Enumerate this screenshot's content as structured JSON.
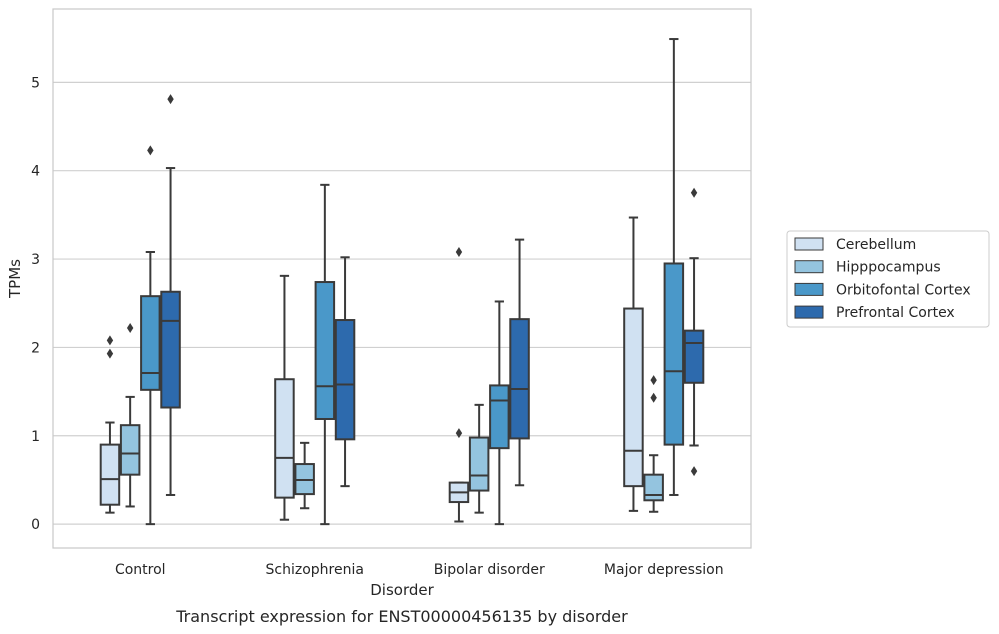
{
  "chart_data": {
    "type": "box",
    "title": "",
    "caption": "Transcript expression for ENST00000456135 by disorder",
    "xlabel": "Disorder",
    "ylabel": "TPMs",
    "ylim": [
      -0.27,
      5.83
    ],
    "yticks": [
      0,
      1,
      2,
      3,
      4,
      5
    ],
    "grid": "horizontal",
    "legend_position": "right",
    "categories": [
      "Control",
      "Schizophrenia",
      "Bipolar disorder",
      "Major depression"
    ],
    "series": [
      {
        "name": "Cerebellum",
        "color": "#d0e1f2",
        "boxes": [
          {
            "q1": 0.22,
            "median": 0.51,
            "q3": 0.9,
            "whisker_low": 0.13,
            "whisker_high": 1.15,
            "outliers": [
              1.93,
              2.08
            ]
          },
          {
            "q1": 0.3,
            "median": 0.75,
            "q3": 1.64,
            "whisker_low": 0.05,
            "whisker_high": 2.81,
            "outliers": []
          },
          {
            "q1": 0.25,
            "median": 0.36,
            "q3": 0.47,
            "whisker_low": 0.03,
            "whisker_high": 0.47,
            "outliers": [
              1.03,
              3.08
            ]
          },
          {
            "q1": 0.43,
            "median": 0.83,
            "q3": 2.44,
            "whisker_low": 0.15,
            "whisker_high": 3.47,
            "outliers": []
          }
        ]
      },
      {
        "name": "Hipppocampus",
        "color": "#94c4df",
        "boxes": [
          {
            "q1": 0.56,
            "median": 0.8,
            "q3": 1.12,
            "whisker_low": 0.2,
            "whisker_high": 1.44,
            "outliers": [
              2.22
            ]
          },
          {
            "q1": 0.34,
            "median": 0.5,
            "q3": 0.68,
            "whisker_low": 0.18,
            "whisker_high": 0.92,
            "outliers": []
          },
          {
            "q1": 0.38,
            "median": 0.55,
            "q3": 0.98,
            "whisker_low": 0.13,
            "whisker_high": 1.35,
            "outliers": []
          },
          {
            "q1": 0.27,
            "median": 0.33,
            "q3": 0.56,
            "whisker_low": 0.14,
            "whisker_high": 0.78,
            "outliers": [
              1.43,
              1.63
            ]
          }
        ]
      },
      {
        "name": "Orbitofontal Cortex",
        "color": "#4a98c9",
        "boxes": [
          {
            "q1": 1.52,
            "median": 1.71,
            "q3": 2.58,
            "whisker_low": 0.0,
            "whisker_high": 3.08,
            "outliers": [
              4.23
            ]
          },
          {
            "q1": 1.19,
            "median": 1.56,
            "q3": 2.74,
            "whisker_low": 0.0,
            "whisker_high": 3.84,
            "outliers": []
          },
          {
            "q1": 0.86,
            "median": 1.4,
            "q3": 1.57,
            "whisker_low": 0.0,
            "whisker_high": 2.52,
            "outliers": []
          },
          {
            "q1": 0.9,
            "median": 1.73,
            "q3": 2.95,
            "whisker_low": 0.33,
            "whisker_high": 5.49,
            "outliers": []
          }
        ]
      },
      {
        "name": "Prefrontal Cortex",
        "color": "#2d6aad",
        "boxes": [
          {
            "q1": 1.32,
            "median": 2.3,
            "q3": 2.63,
            "whisker_low": 0.33,
            "whisker_high": 4.03,
            "outliers": [
              4.81
            ]
          },
          {
            "q1": 0.96,
            "median": 1.58,
            "q3": 2.31,
            "whisker_low": 0.43,
            "whisker_high": 3.02,
            "outliers": []
          },
          {
            "q1": 0.97,
            "median": 1.53,
            "q3": 2.32,
            "whisker_low": 0.44,
            "whisker_high": 3.22,
            "outliers": []
          },
          {
            "q1": 1.6,
            "median": 2.05,
            "q3": 2.19,
            "whisker_low": 0.89,
            "whisker_high": 3.01,
            "outliers": [
              0.6,
              3.75
            ]
          }
        ]
      }
    ]
  },
  "colors": {
    "box_edge": "#3a3a3a",
    "grid": "#d0d0d0",
    "frame": "#c8c8c8"
  }
}
